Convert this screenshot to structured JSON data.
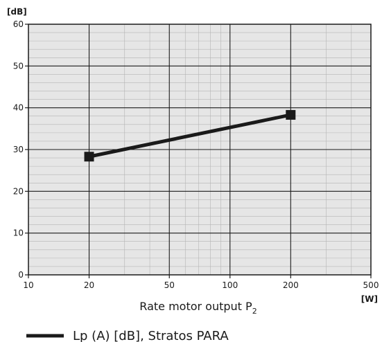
{
  "chart_data": {
    "type": "line",
    "xscale": "log",
    "xlim": [
      10,
      500
    ],
    "ylim": [
      0,
      60
    ],
    "x_ticks": [
      10,
      20,
      50,
      100,
      200,
      500
    ],
    "y_ticks": [
      0,
      10,
      20,
      30,
      40,
      50,
      60
    ],
    "x_major_grid": [
      20,
      50,
      100,
      200
    ],
    "grid": true,
    "xlabel": "Rate motor output P",
    "xlabel_subscript": "2",
    "xunit": "[W]",
    "yunit": "[dB]",
    "series": [
      {
        "name": "Lp (A) [dB], Stratos PARA",
        "x": [
          20,
          200
        ],
        "y": [
          28.3,
          38.3
        ],
        "color": "#1a1a1a",
        "marker": "square"
      }
    ],
    "legend_position": "bottom-left",
    "background": "#e6e6e6"
  }
}
